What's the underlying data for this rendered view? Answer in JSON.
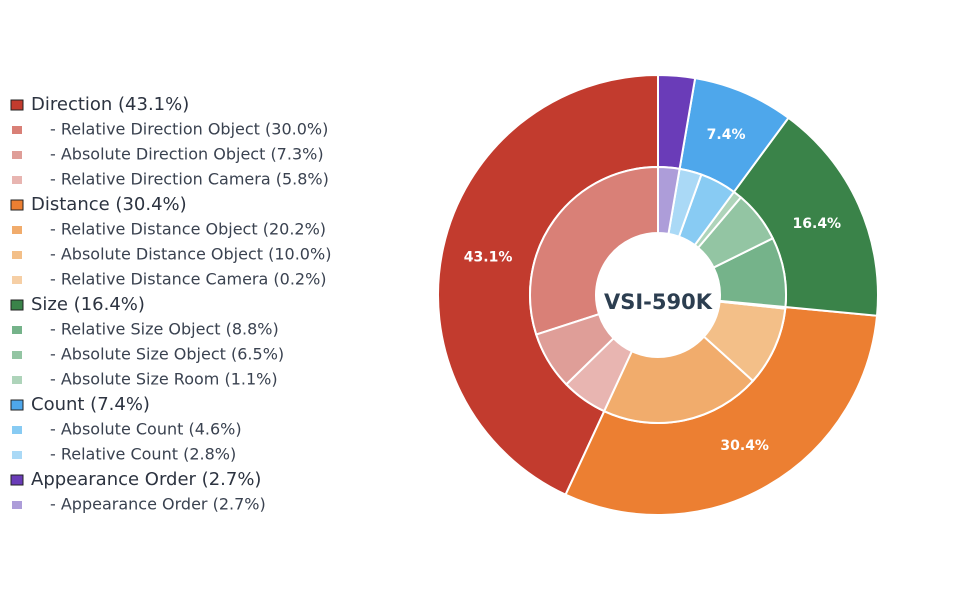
{
  "chart_data": {
    "type": "nested-donut",
    "center_text": "VSI-590K",
    "categories": [
      "Direction (43.1%)",
      "Distance (30.4%)",
      "Size (16.4%)",
      "Count (7.4%)",
      "Appearance Order (2.7%)"
    ],
    "values": [
      43.1,
      30.4,
      16.4,
      7.4,
      2.7
    ],
    "value_labels": [
      "43.1%",
      "30.4%",
      "16.4%",
      "7.4%",
      null
    ],
    "colors": [
      "#c23b2e",
      "#ec7f32",
      "#3a8349",
      "#4ea7eb",
      "#6a3cb8"
    ],
    "children": [
      {
        "labels": [
          "- Relative Direction Object (30.0%)",
          "- Absolute Direction Object (7.3%)",
          "- Relative Direction Camera (5.8%)"
        ],
        "values": [
          30.0,
          7.3,
          5.8
        ],
        "colors": [
          "#d98077",
          "#df9e98",
          "#e8b5b1"
        ]
      },
      {
        "labels": [
          "- Relative Distance Object (20.2%)",
          "- Absolute Distance Object (10.0%)",
          "- Relative Distance Camera (0.2%)"
        ],
        "values": [
          20.2,
          10.0,
          0.2
        ],
        "colors": [
          "#f1ac6c",
          "#f3bf88",
          "#f6cfa5"
        ]
      },
      {
        "labels": [
          "- Relative Size Object (8.8%)",
          "- Absolute Size Object (6.5%)",
          "- Absolute Size Room (1.1%)"
        ],
        "values": [
          8.8,
          6.5,
          1.1
        ],
        "colors": [
          "#75b38a",
          "#93c5a3",
          "#aed4ba"
        ]
      },
      {
        "labels": [
          "- Absolute Count (4.6%)",
          "- Relative Count (2.8%)"
        ],
        "values": [
          4.6,
          2.8
        ],
        "colors": [
          "#88cbf3",
          "#aad9f6"
        ]
      },
      {
        "labels": [
          "- Appearance Order (2.7%)"
        ],
        "values": [
          2.7
        ],
        "colors": [
          "#ad9dd9"
        ]
      }
    ]
  }
}
